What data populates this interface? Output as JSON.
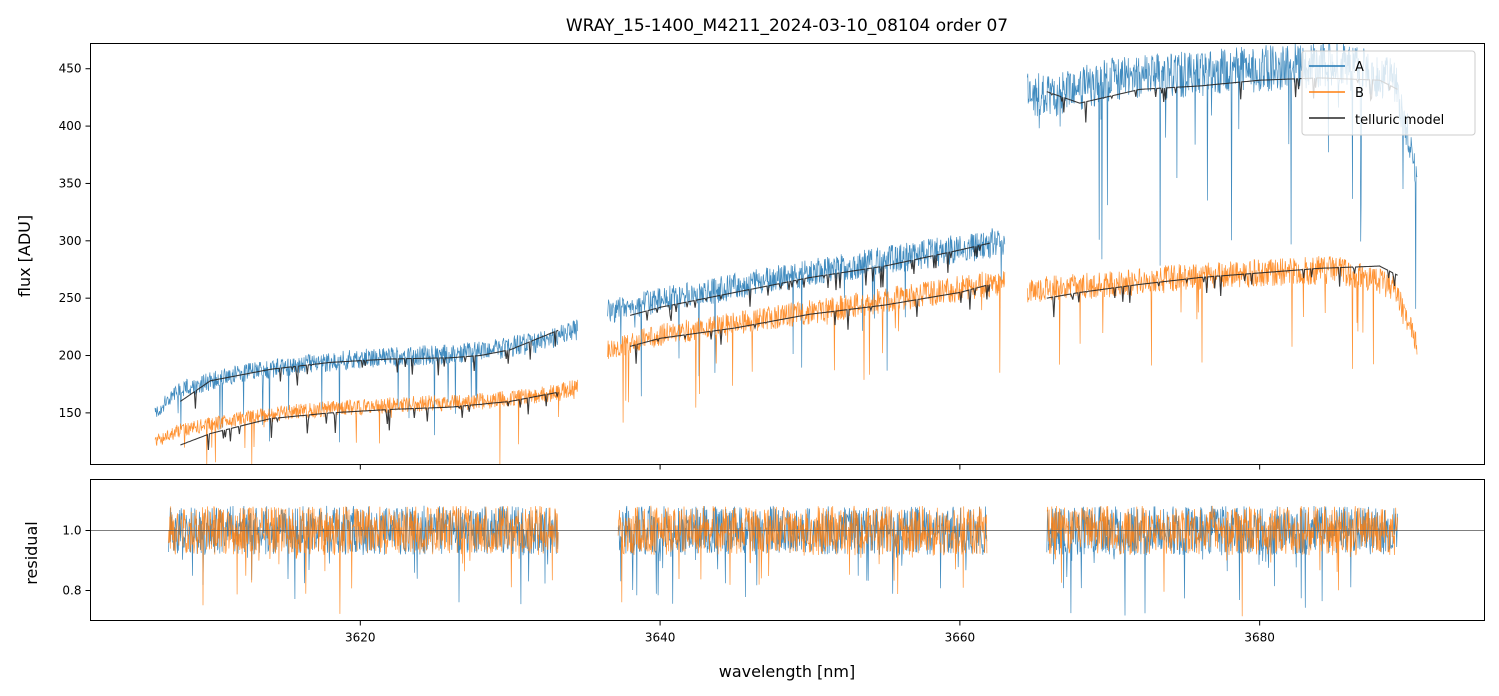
{
  "chart_data": [
    {
      "panel": "top",
      "type": "line",
      "title": "WRAY_15-1400_M4211_2024-03-10_08104  order 07",
      "xlabel": "",
      "ylabel": "flux [ADU]",
      "xlim": [
        3602,
        3695
      ],
      "ylim": [
        105,
        472
      ],
      "xticks": [
        3620,
        3640,
        3660,
        3680
      ],
      "yticks": [
        150,
        200,
        250,
        300,
        350,
        400,
        450
      ],
      "ytick_labels": [
        "150",
        "200",
        "250",
        "300",
        "350",
        "400",
        "450"
      ],
      "legend": {
        "location": "top-right",
        "entries": [
          {
            "label": "A",
            "color": "#1f77b4"
          },
          {
            "label": "B",
            "color": "#ff7f0e"
          },
          {
            "label": "telluric model",
            "color": "#262626"
          }
        ]
      },
      "series": [
        {
          "name": "A",
          "color": "#1f77b4",
          "segments": [
            {
              "x": [
                3606.3,
                3608,
                3612,
                3616,
                3620,
                3624,
                3628,
                3632,
                3634.5
              ],
              "y": [
                150,
                170,
                185,
                192,
                197,
                200,
                203,
                212,
                222
              ]
            },
            {
              "x": [
                3636.5,
                3640,
                3645,
                3650,
                3655,
                3660,
                3663.0
              ],
              "y": [
                238,
                248,
                260,
                272,
                283,
                293,
                300
              ]
            },
            {
              "x": [
                3664.5,
                3666,
                3670,
                3675,
                3680,
                3685,
                3689,
                3690.5
              ],
              "y": [
                430,
                425,
                440,
                445,
                450,
                455,
                440,
                360
              ]
            }
          ]
        },
        {
          "name": "B",
          "color": "#ff7f0e",
          "segments": [
            {
              "x": [
                3606.3,
                3608,
                3612,
                3616,
                3620,
                3624,
                3628,
                3632,
                3634.5
              ],
              "y": [
                125,
                135,
                145,
                152,
                155,
                158,
                160,
                165,
                172
              ]
            },
            {
              "x": [
                3636.5,
                3640,
                3645,
                3650,
                3655,
                3660,
                3663.0
              ],
              "y": [
                205,
                218,
                228,
                238,
                248,
                258,
                265
              ]
            },
            {
              "x": [
                3664.5,
                3666,
                3670,
                3675,
                3680,
                3685,
                3689,
                3690.5
              ],
              "y": [
                255,
                258,
                262,
                268,
                272,
                275,
                260,
                210
              ]
            }
          ]
        },
        {
          "name": "telluric model",
          "color": "#262626",
          "segments": [
            {
              "x": [
                3608,
                3610,
                3614,
                3618,
                3622,
                3626,
                3628,
                3630,
                3633.2
              ],
              "y": [
                160,
                178,
                188,
                194,
                197,
                198,
                200,
                205,
                222
              ]
            },
            {
              "x": [
                3638,
                3640,
                3645,
                3650,
                3655,
                3660,
                3662
              ],
              "y": [
                235,
                242,
                255,
                268,
                278,
                292,
                298
              ]
            },
            {
              "x": [
                3665.8,
                3668,
                3672,
                3676,
                3680,
                3684,
                3688,
                3689.2
              ],
              "y": [
                430,
                420,
                432,
                435,
                440,
                442,
                440,
                432
              ]
            },
            {
              "x": [
                3608,
                3610,
                3614,
                3618,
                3622,
                3626,
                3630,
                3633.2
              ],
              "y": [
                122,
                132,
                145,
                150,
                153,
                155,
                160,
                168
              ]
            },
            {
              "x": [
                3638,
                3640,
                3645,
                3650,
                3655,
                3660,
                3662
              ],
              "y": [
                208,
                215,
                224,
                236,
                244,
                255,
                262
              ]
            },
            {
              "x": [
                3665.8,
                3668,
                3672,
                3676,
                3680,
                3684,
                3688,
                3689.2
              ],
              "y": [
                250,
                255,
                262,
                268,
                272,
                276,
                278,
                270
              ]
            }
          ]
        }
      ]
    },
    {
      "panel": "bottom",
      "type": "line",
      "title": "",
      "xlabel": "wavelength [nm]",
      "ylabel": "residual",
      "xlim": [
        3602,
        3695
      ],
      "ylim": [
        0.7,
        1.17
      ],
      "xticks": [
        3620,
        3640,
        3660,
        3680
      ],
      "xtick_labels": [
        "3620",
        "3640",
        "3660",
        "3680"
      ],
      "yticks": [
        0.8,
        1.0
      ],
      "ytick_labels": [
        "0.8",
        "1.0"
      ],
      "reference_line": 1.0,
      "series": [
        {
          "name": "A",
          "color": "#1f77b4",
          "segments": [
            {
              "x": [
                3607.2,
                3633.2
              ],
              "y": [
                1.0,
                1.0
              ]
            },
            {
              "x": [
                3637.2,
                3661.8
              ],
              "y": [
                1.0,
                1.0
              ]
            },
            {
              "x": [
                3665.8,
                3689.2
              ],
              "y": [
                1.0,
                1.0
              ]
            }
          ]
        },
        {
          "name": "B",
          "color": "#ff7f0e",
          "segments": [
            {
              "x": [
                3607.2,
                3633.2
              ],
              "y": [
                1.0,
                1.0
              ]
            },
            {
              "x": [
                3637.2,
                3661.8
              ],
              "y": [
                1.0,
                1.0
              ]
            },
            {
              "x": [
                3665.8,
                3689.2
              ],
              "y": [
                1.0,
                1.0
              ]
            }
          ]
        }
      ]
    }
  ]
}
